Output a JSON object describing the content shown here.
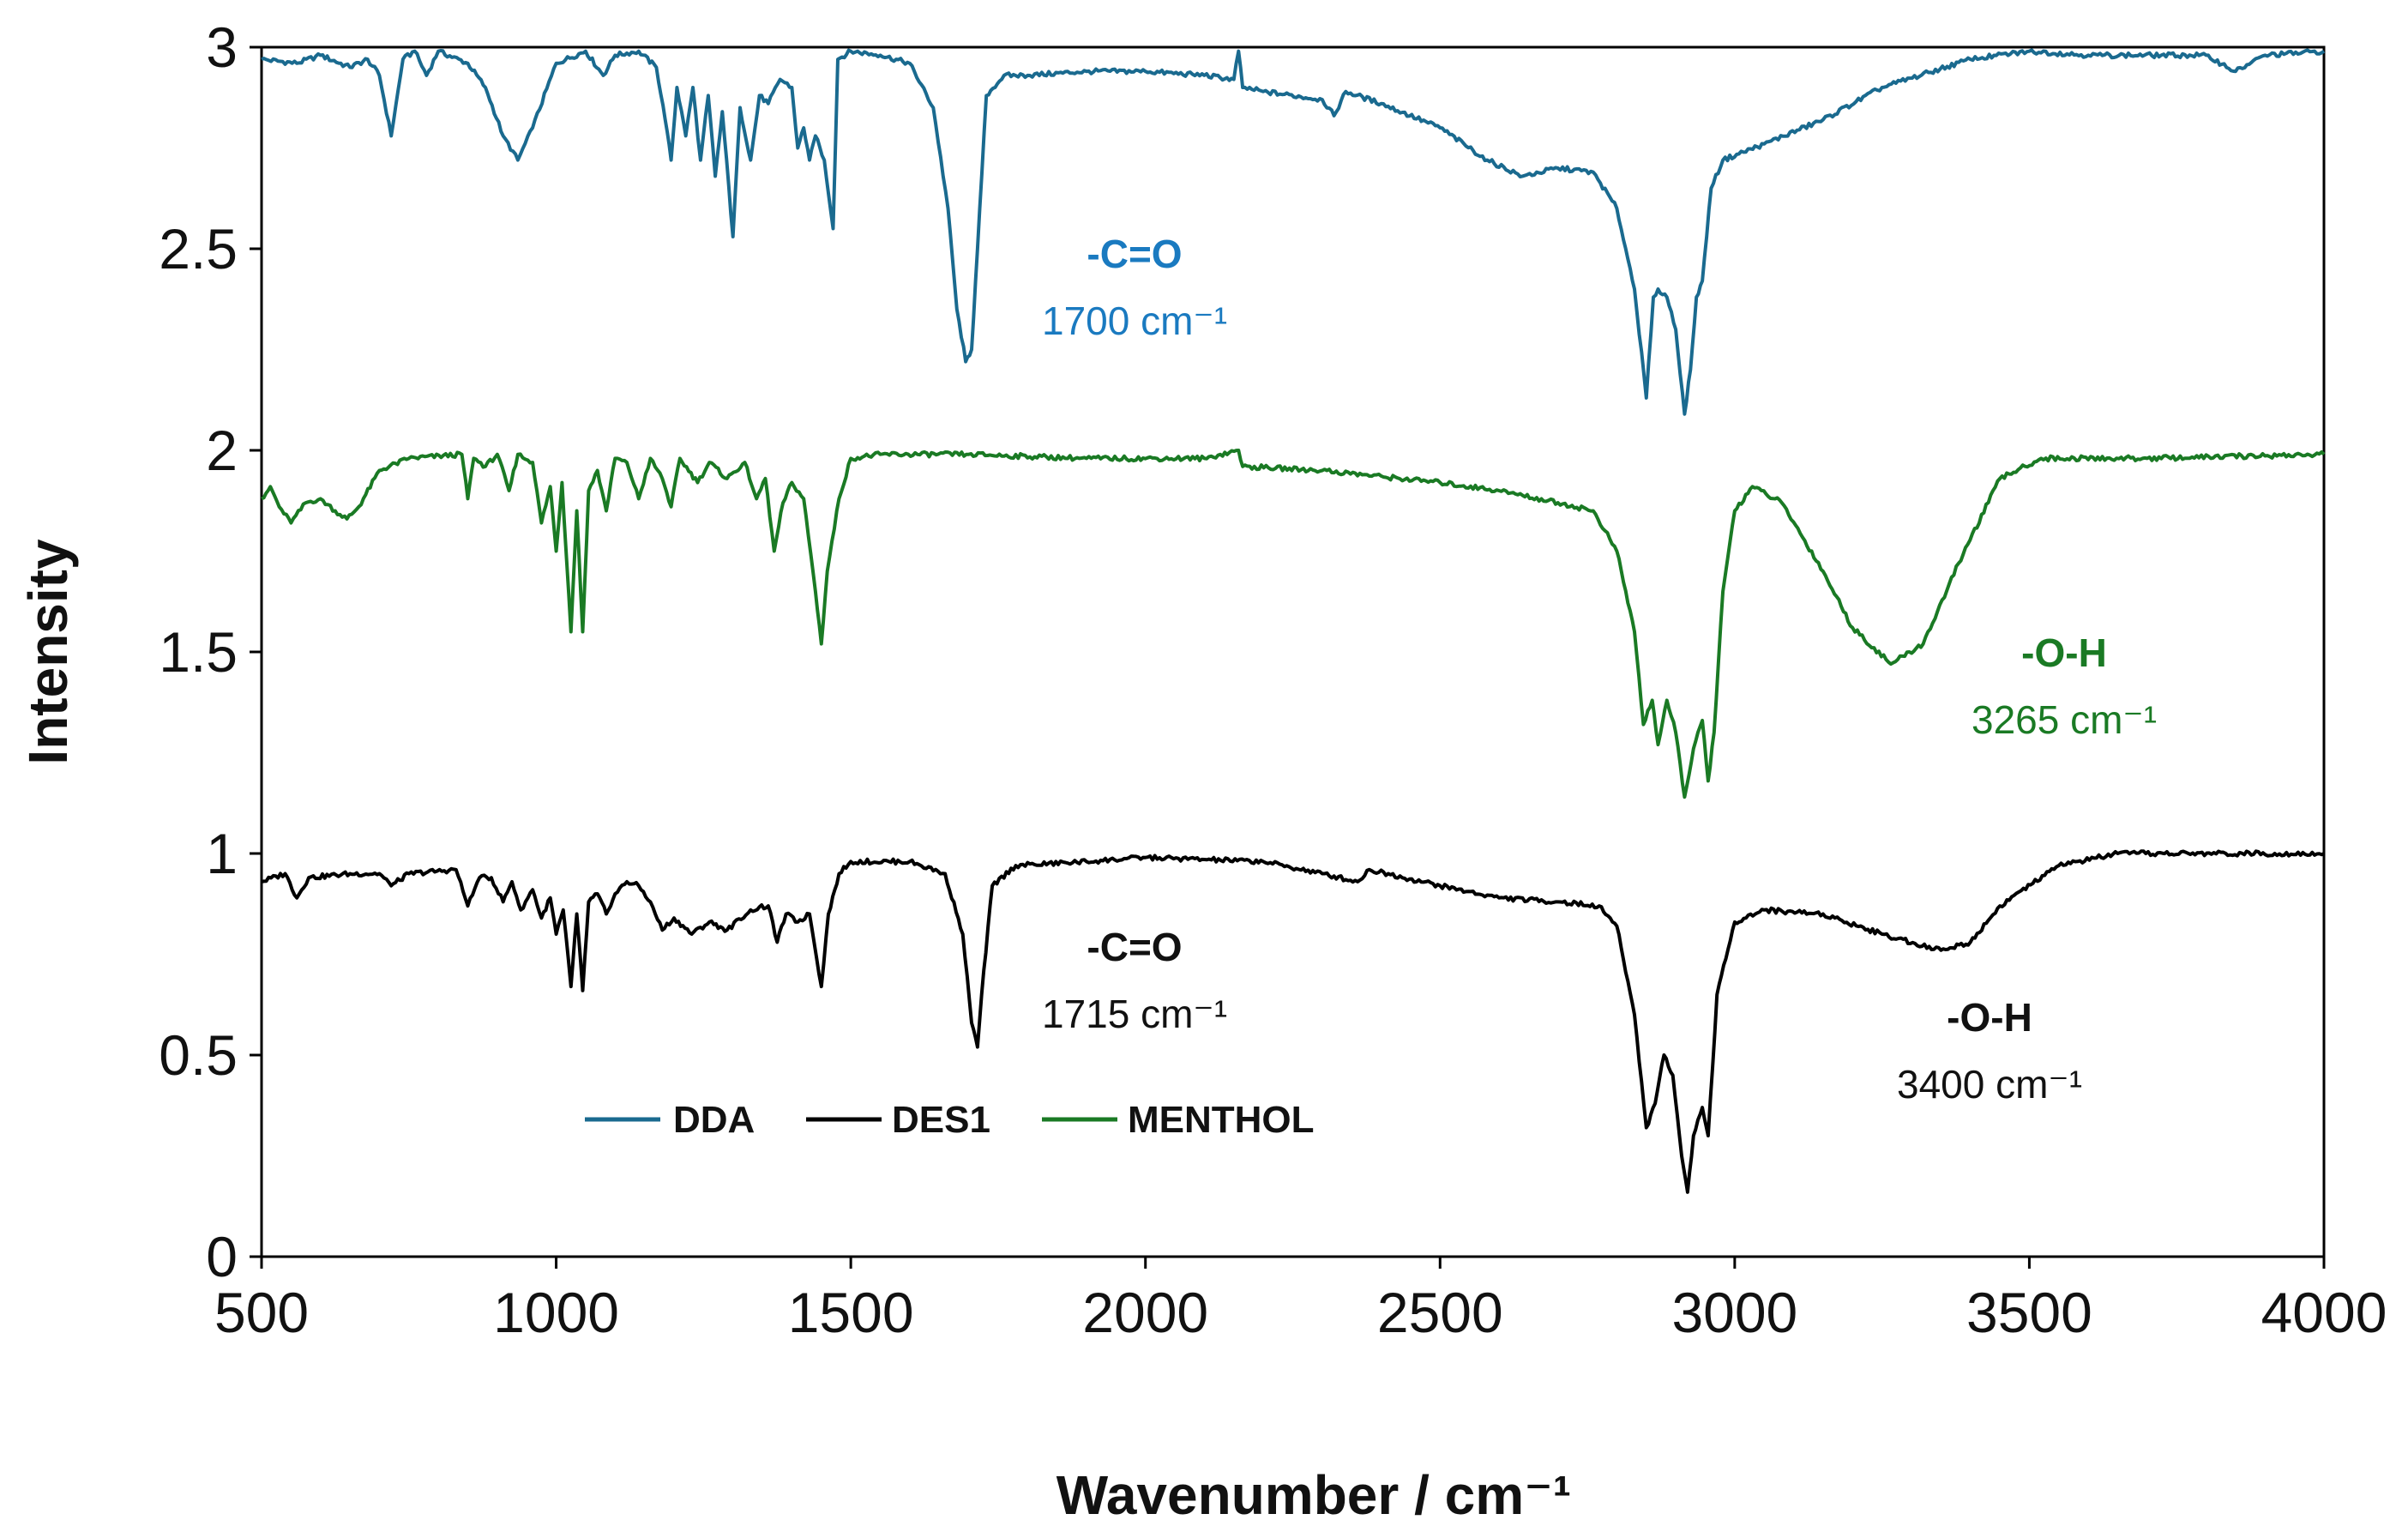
{
  "chart_data": {
    "type": "line",
    "title": "",
    "xlabel": "Wavenumber / cm⁻¹",
    "ylabel": "Intensity",
    "xlim": [
      500,
      4000
    ],
    "ylim": [
      0,
      3
    ],
    "grid": false,
    "x_ticks": [
      "500",
      "1000",
      "1500",
      "2000",
      "2500",
      "3000",
      "3500",
      "4000"
    ],
    "y_ticks": [
      "0",
      "0.5",
      "1",
      "1.5",
      "2",
      "2.5",
      "3"
    ],
    "legend": {
      "placement": "bottom-left",
      "entries": [
        {
          "label": "DDA",
          "color": "#1a6a8f"
        },
        {
          "label": "DES1",
          "color": "#000000"
        },
        {
          "label": "MENTHOL",
          "color": "#1a7a24"
        }
      ]
    },
    "series": [
      {
        "name": "DDA",
        "color": "#1a6a8f",
        "points": [
          [
            500,
            2.97
          ],
          [
            560,
            2.96
          ],
          [
            600,
            2.98
          ],
          [
            650,
            2.95
          ],
          [
            680,
            2.97
          ],
          [
            700,
            2.93
          ],
          [
            720,
            2.78
          ],
          [
            740,
            2.97
          ],
          [
            760,
            2.99
          ],
          [
            780,
            2.93
          ],
          [
            800,
            2.99
          ],
          [
            850,
            2.96
          ],
          [
            880,
            2.9
          ],
          [
            910,
            2.78
          ],
          [
            935,
            2.72
          ],
          [
            960,
            2.8
          ],
          [
            1000,
            2.96
          ],
          [
            1050,
            2.99
          ],
          [
            1080,
            2.93
          ],
          [
            1100,
            2.98
          ],
          [
            1140,
            2.99
          ],
          [
            1170,
            2.95
          ],
          [
            1185,
            2.82
          ],
          [
            1195,
            2.72
          ],
          [
            1205,
            2.9
          ],
          [
            1220,
            2.78
          ],
          [
            1232,
            2.9
          ],
          [
            1245,
            2.72
          ],
          [
            1258,
            2.88
          ],
          [
            1270,
            2.68
          ],
          [
            1282,
            2.84
          ],
          [
            1300,
            2.53
          ],
          [
            1312,
            2.85
          ],
          [
            1330,
            2.72
          ],
          [
            1345,
            2.88
          ],
          [
            1360,
            2.86
          ],
          [
            1380,
            2.92
          ],
          [
            1400,
            2.9
          ],
          [
            1410,
            2.75
          ],
          [
            1420,
            2.8
          ],
          [
            1430,
            2.72
          ],
          [
            1440,
            2.78
          ],
          [
            1455,
            2.72
          ],
          [
            1470,
            2.55
          ],
          [
            1478,
            2.97
          ],
          [
            1500,
            2.99
          ],
          [
            1550,
            2.98
          ],
          [
            1600,
            2.96
          ],
          [
            1640,
            2.85
          ],
          [
            1665,
            2.6
          ],
          [
            1680,
            2.35
          ],
          [
            1695,
            2.22
          ],
          [
            1705,
            2.25
          ],
          [
            1715,
            2.5
          ],
          [
            1730,
            2.88
          ],
          [
            1760,
            2.93
          ],
          [
            1800,
            2.93
          ],
          [
            1900,
            2.94
          ],
          [
            2000,
            2.94
          ],
          [
            2100,
            2.93
          ],
          [
            2150,
            2.92
          ],
          [
            2158,
            2.99
          ],
          [
            2165,
            2.9
          ],
          [
            2200,
            2.89
          ],
          [
            2300,
            2.87
          ],
          [
            2320,
            2.83
          ],
          [
            2340,
            2.89
          ],
          [
            2400,
            2.86
          ],
          [
            2500,
            2.8
          ],
          [
            2580,
            2.72
          ],
          [
            2640,
            2.68
          ],
          [
            2700,
            2.7
          ],
          [
            2760,
            2.69
          ],
          [
            2800,
            2.6
          ],
          [
            2830,
            2.4
          ],
          [
            2850,
            2.13
          ],
          [
            2862,
            2.38
          ],
          [
            2870,
            2.4
          ],
          [
            2885,
            2.38
          ],
          [
            2900,
            2.3
          ],
          [
            2915,
            2.09
          ],
          [
            2925,
            2.2
          ],
          [
            2935,
            2.38
          ],
          [
            2945,
            2.42
          ],
          [
            2960,
            2.65
          ],
          [
            2980,
            2.72
          ],
          [
            3050,
            2.76
          ],
          [
            3150,
            2.82
          ],
          [
            3250,
            2.9
          ],
          [
            3400,
            2.97
          ],
          [
            3500,
            2.99
          ],
          [
            3600,
            2.98
          ],
          [
            3800,
            2.98
          ],
          [
            3850,
            2.94
          ],
          [
            3900,
            2.98
          ],
          [
            4000,
            2.99
          ]
        ]
      },
      {
        "name": "MENTHOL",
        "color": "#1a7a24",
        "points": [
          [
            500,
            1.88
          ],
          [
            515,
            1.91
          ],
          [
            530,
            1.86
          ],
          [
            550,
            1.82
          ],
          [
            575,
            1.87
          ],
          [
            600,
            1.88
          ],
          [
            625,
            1.85
          ],
          [
            645,
            1.83
          ],
          [
            665,
            1.86
          ],
          [
            700,
            1.95
          ],
          [
            750,
            1.98
          ],
          [
            840,
            1.99
          ],
          [
            850,
            1.88
          ],
          [
            860,
            1.98
          ],
          [
            880,
            1.96
          ],
          [
            900,
            1.99
          ],
          [
            920,
            1.9
          ],
          [
            935,
            1.99
          ],
          [
            960,
            1.97
          ],
          [
            975,
            1.82
          ],
          [
            990,
            1.91
          ],
          [
            1000,
            1.75
          ],
          [
            1010,
            1.92
          ],
          [
            1025,
            1.55
          ],
          [
            1035,
            1.85
          ],
          [
            1045,
            1.55
          ],
          [
            1055,
            1.9
          ],
          [
            1070,
            1.95
          ],
          [
            1085,
            1.85
          ],
          [
            1100,
            1.98
          ],
          [
            1120,
            1.97
          ],
          [
            1140,
            1.88
          ],
          [
            1160,
            1.98
          ],
          [
            1180,
            1.93
          ],
          [
            1195,
            1.86
          ],
          [
            1210,
            1.98
          ],
          [
            1240,
            1.92
          ],
          [
            1260,
            1.97
          ],
          [
            1290,
            1.93
          ],
          [
            1320,
            1.97
          ],
          [
            1340,
            1.88
          ],
          [
            1355,
            1.93
          ],
          [
            1370,
            1.75
          ],
          [
            1385,
            1.87
          ],
          [
            1400,
            1.92
          ],
          [
            1420,
            1.88
          ],
          [
            1440,
            1.65
          ],
          [
            1450,
            1.52
          ],
          [
            1460,
            1.7
          ],
          [
            1480,
            1.88
          ],
          [
            1500,
            1.98
          ],
          [
            1550,
            1.99
          ],
          [
            1700,
            1.99
          ],
          [
            1900,
            1.98
          ],
          [
            2100,
            1.98
          ],
          [
            2158,
            2.0
          ],
          [
            2165,
            1.96
          ],
          [
            2300,
            1.95
          ],
          [
            2500,
            1.92
          ],
          [
            2600,
            1.9
          ],
          [
            2700,
            1.87
          ],
          [
            2760,
            1.85
          ],
          [
            2800,
            1.75
          ],
          [
            2830,
            1.55
          ],
          [
            2845,
            1.32
          ],
          [
            2860,
            1.38
          ],
          [
            2870,
            1.27
          ],
          [
            2885,
            1.38
          ],
          [
            2900,
            1.3
          ],
          [
            2915,
            1.14
          ],
          [
            2930,
            1.26
          ],
          [
            2945,
            1.33
          ],
          [
            2955,
            1.18
          ],
          [
            2965,
            1.3
          ],
          [
            2980,
            1.65
          ],
          [
            3000,
            1.85
          ],
          [
            3030,
            1.91
          ],
          [
            3080,
            1.87
          ],
          [
            3150,
            1.7
          ],
          [
            3200,
            1.56
          ],
          [
            3265,
            1.47
          ],
          [
            3320,
            1.52
          ],
          [
            3380,
            1.72
          ],
          [
            3450,
            1.93
          ],
          [
            3520,
            1.98
          ],
          [
            3700,
            1.98
          ],
          [
            4000,
            1.99
          ]
        ]
      },
      {
        "name": "DES1",
        "color": "#000000",
        "points": [
          [
            500,
            0.93
          ],
          [
            540,
            0.95
          ],
          [
            560,
            0.89
          ],
          [
            580,
            0.94
          ],
          [
            650,
            0.95
          ],
          [
            700,
            0.95
          ],
          [
            720,
            0.92
          ],
          [
            750,
            0.95
          ],
          [
            830,
            0.96
          ],
          [
            850,
            0.87
          ],
          [
            870,
            0.94
          ],
          [
            890,
            0.94
          ],
          [
            910,
            0.88
          ],
          [
            925,
            0.93
          ],
          [
            940,
            0.86
          ],
          [
            960,
            0.91
          ],
          [
            975,
            0.84
          ],
          [
            990,
            0.89
          ],
          [
            1000,
            0.8
          ],
          [
            1012,
            0.86
          ],
          [
            1025,
            0.67
          ],
          [
            1035,
            0.85
          ],
          [
            1045,
            0.66
          ],
          [
            1055,
            0.88
          ],
          [
            1070,
            0.9
          ],
          [
            1085,
            0.85
          ],
          [
            1100,
            0.9
          ],
          [
            1120,
            0.93
          ],
          [
            1140,
            0.92
          ],
          [
            1160,
            0.88
          ],
          [
            1180,
            0.81
          ],
          [
            1200,
            0.84
          ],
          [
            1230,
            0.8
          ],
          [
            1260,
            0.83
          ],
          [
            1290,
            0.81
          ],
          [
            1330,
            0.86
          ],
          [
            1360,
            0.87
          ],
          [
            1375,
            0.78
          ],
          [
            1390,
            0.85
          ],
          [
            1410,
            0.83
          ],
          [
            1430,
            0.85
          ],
          [
            1450,
            0.67
          ],
          [
            1462,
            0.85
          ],
          [
            1480,
            0.95
          ],
          [
            1500,
            0.98
          ],
          [
            1600,
            0.98
          ],
          [
            1660,
            0.95
          ],
          [
            1690,
            0.8
          ],
          [
            1705,
            0.58
          ],
          [
            1715,
            0.52
          ],
          [
            1722,
            0.65
          ],
          [
            1740,
            0.92
          ],
          [
            1780,
            0.97
          ],
          [
            1900,
            0.98
          ],
          [
            2000,
            0.99
          ],
          [
            2200,
            0.98
          ],
          [
            2300,
            0.95
          ],
          [
            2360,
            0.93
          ],
          [
            2380,
            0.96
          ],
          [
            2500,
            0.92
          ],
          [
            2600,
            0.89
          ],
          [
            2700,
            0.88
          ],
          [
            2770,
            0.87
          ],
          [
            2800,
            0.82
          ],
          [
            2830,
            0.6
          ],
          [
            2850,
            0.32
          ],
          [
            2865,
            0.38
          ],
          [
            2880,
            0.5
          ],
          [
            2895,
            0.45
          ],
          [
            2910,
            0.25
          ],
          [
            2920,
            0.16
          ],
          [
            2930,
            0.3
          ],
          [
            2945,
            0.37
          ],
          [
            2955,
            0.3
          ],
          [
            2970,
            0.65
          ],
          [
            3000,
            0.83
          ],
          [
            3050,
            0.86
          ],
          [
            3150,
            0.85
          ],
          [
            3250,
            0.8
          ],
          [
            3350,
            0.76
          ],
          [
            3400,
            0.78
          ],
          [
            3450,
            0.87
          ],
          [
            3550,
            0.97
          ],
          [
            3650,
            1.0
          ],
          [
            4000,
            1.0
          ]
        ]
      }
    ],
    "annotations": [
      {
        "bond": "-C=O",
        "wavenumber": "1700 cm⁻¹",
        "color": "#1a7ac0",
        "series": "DDA"
      },
      {
        "bond": "-O-H",
        "wavenumber": "3265 cm⁻¹",
        "color": "#1a7a24",
        "series": "MENTHOL"
      },
      {
        "bond": "-C=O",
        "wavenumber": "1715 cm⁻¹",
        "color": "#111111",
        "series": "DES1"
      },
      {
        "bond": "-O-H",
        "wavenumber": "3400 cm⁻¹",
        "color": "#111111",
        "series": "DES1"
      }
    ]
  }
}
